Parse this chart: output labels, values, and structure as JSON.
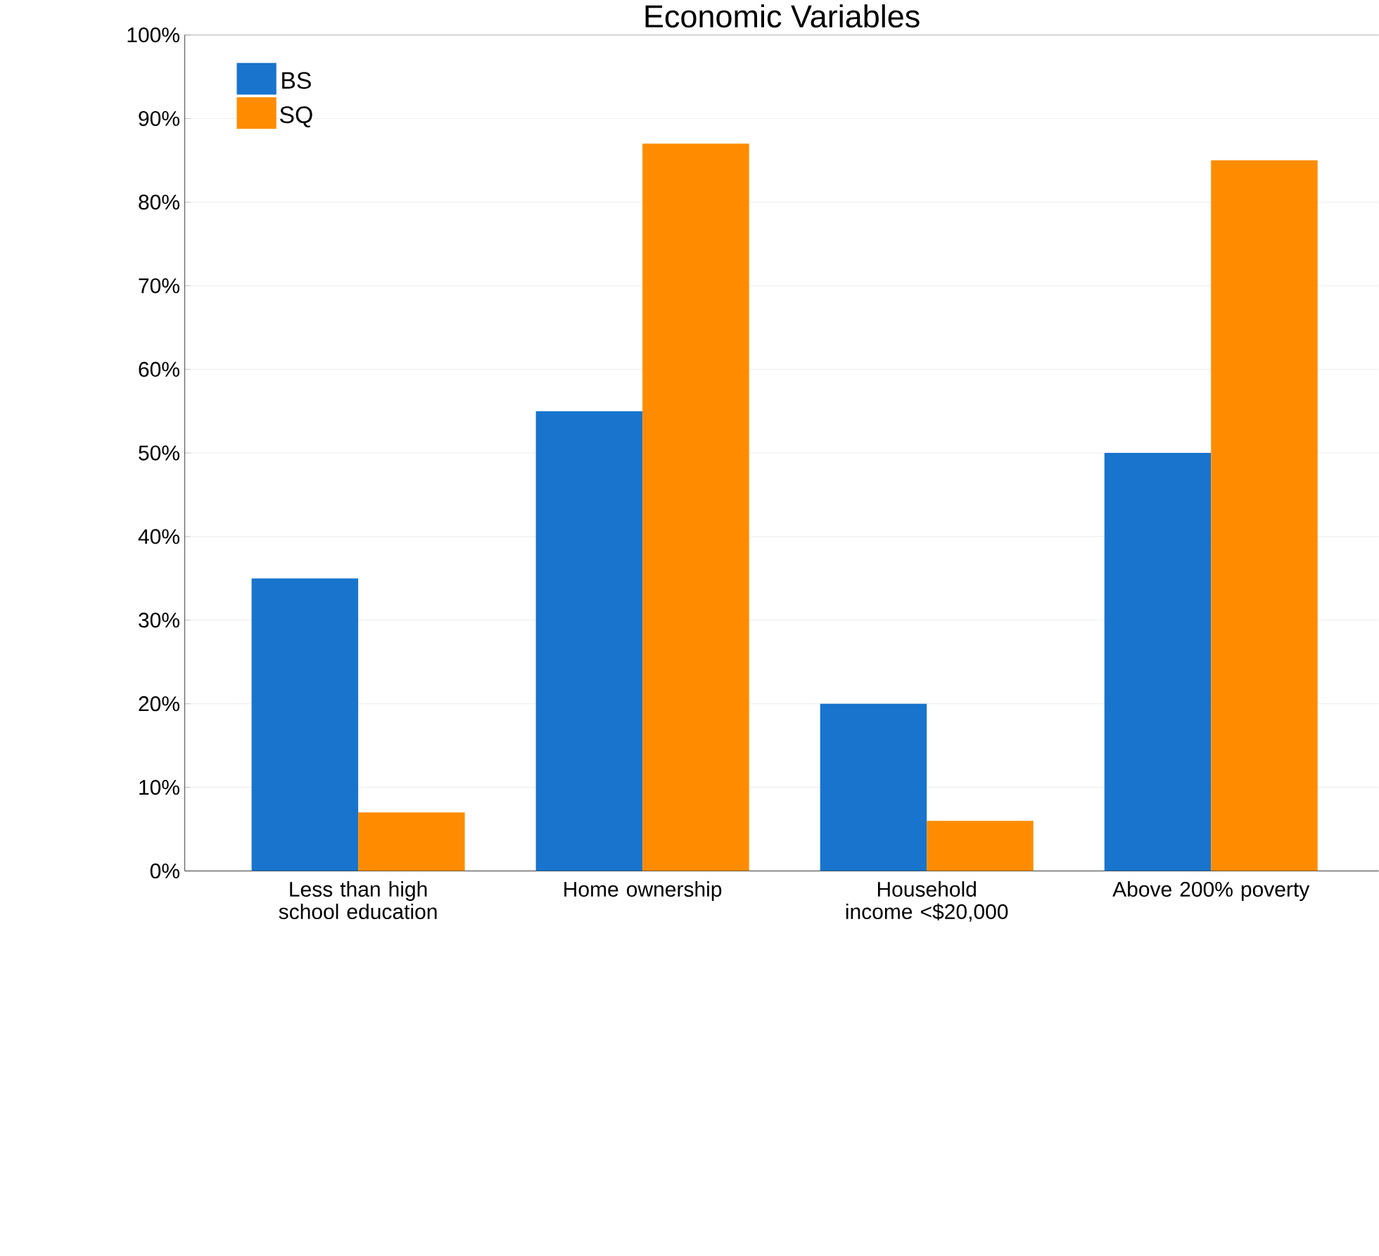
{
  "chart_data": {
    "type": "bar",
    "title": "Economic Variables",
    "categories": [
      "Less than high school education",
      "Home ownership",
      "Household income <$20,000",
      "Above 200% poverty"
    ],
    "series": [
      {
        "name": "BS",
        "color": "#1874cd",
        "values": [
          35,
          55,
          20,
          50
        ]
      },
      {
        "name": "SQ",
        "color": "#ff8c00",
        "values": [
          7,
          87,
          6,
          85
        ]
      }
    ],
    "ylim": [
      0,
      100
    ],
    "yticks": [
      {
        "value": 0,
        "label": "0%"
      },
      {
        "value": 10,
        "label": "10%"
      },
      {
        "value": 20,
        "label": "20%"
      },
      {
        "value": 30,
        "label": "30%"
      },
      {
        "value": 40,
        "label": "40%"
      },
      {
        "value": 50,
        "label": "50%"
      },
      {
        "value": 60,
        "label": "60%"
      },
      {
        "value": 70,
        "label": "70%"
      },
      {
        "value": 80,
        "label": "80%"
      },
      {
        "value": 90,
        "label": "90%"
      },
      {
        "value": 100,
        "label": "100%"
      }
    ],
    "grid": "y",
    "legend": "top left"
  }
}
